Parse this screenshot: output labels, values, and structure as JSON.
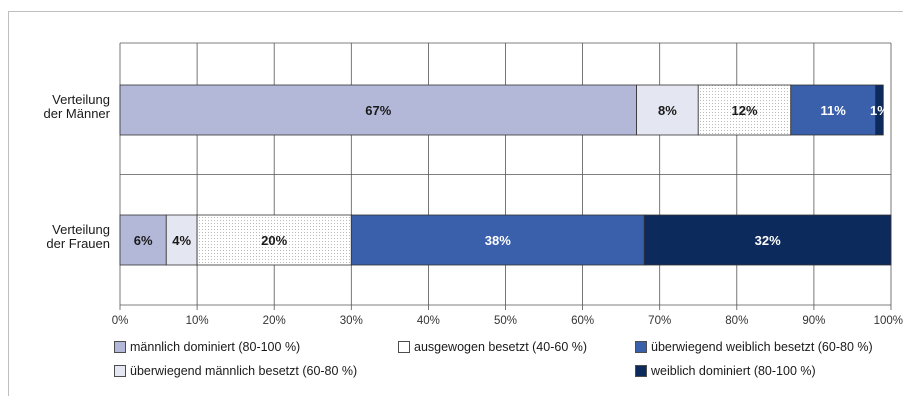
{
  "chart_data": {
    "type": "bar",
    "orientation": "horizontal",
    "stacked": true,
    "categories": [
      "Verteilung der Männer",
      "Verteilung der Frauen"
    ],
    "category_lines": [
      [
        "Verteilung",
        "der Männer"
      ],
      [
        "Verteilung",
        "der Frauen"
      ]
    ],
    "series": [
      {
        "name": "männlich dominiert (80-100 %)",
        "values": [
          67,
          6
        ],
        "labels": [
          "67%",
          "6%"
        ],
        "color": "#b3b8d9",
        "pattern": "none",
        "label_color": "#1a1a1a"
      },
      {
        "name": "überwiegend männlich besetzt (60-80 %)",
        "values": [
          8,
          4
        ],
        "labels": [
          "8%",
          "4%"
        ],
        "color": "#e4e6f2",
        "pattern": "none",
        "label_color": "#1a1a1a"
      },
      {
        "name": "ausgewogen besetzt (40-60 %)",
        "values": [
          12,
          20
        ],
        "labels": [
          "12%",
          "20%"
        ],
        "color": "#ffffff",
        "pattern": "dots",
        "label_color": "#1a1a1a"
      },
      {
        "name": "überwiegend weiblich besetzt (60-80 %)",
        "values": [
          11,
          38
        ],
        "labels": [
          "11%",
          "38%"
        ],
        "color": "#3a5fab",
        "pattern": "none",
        "label_color": "#ffffff"
      },
      {
        "name": "weiblich dominiert (80-100 %)",
        "values": [
          1,
          32
        ],
        "labels": [
          "1%",
          "32%"
        ],
        "color": "#0d2a5c",
        "pattern": "none",
        "label_color": "#ffffff"
      }
    ],
    "x_ticks": [
      "0%",
      "10%",
      "20%",
      "30%",
      "40%",
      "50%",
      "60%",
      "70%",
      "80%",
      "90%",
      "100%"
    ],
    "xlim": [
      0,
      100
    ],
    "grid": true,
    "legend_position": "bottom",
    "legend_order": [
      0,
      2,
      3,
      1,
      4
    ]
  }
}
